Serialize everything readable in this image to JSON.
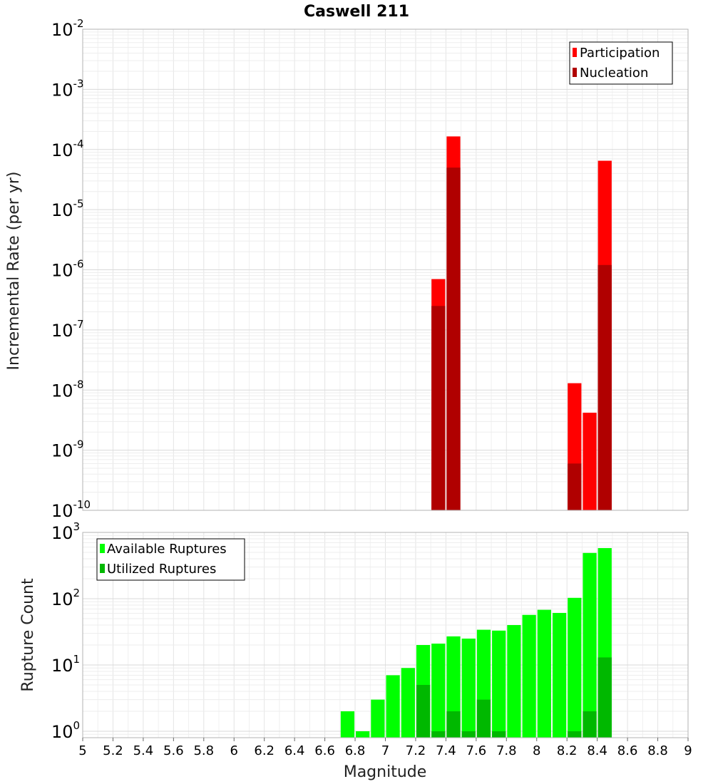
{
  "chart_data": [
    {
      "type": "bar",
      "title": "Caswell 211",
      "xlabel": "",
      "ylabel": "Incremental Rate (per yr)",
      "yscale": "log",
      "xlim": [
        5,
        9
      ],
      "ylim": [
        1e-10,
        0.01
      ],
      "grid": true,
      "legend_position": "top-right",
      "bar_width": 0.1,
      "y_ticks": [
        {
          "base": "10",
          "exp": "-10",
          "value": 1e-10
        },
        {
          "base": "10",
          "exp": "-9",
          "value": 1e-09
        },
        {
          "base": "10",
          "exp": "-8",
          "value": 1e-08
        },
        {
          "base": "10",
          "exp": "-7",
          "value": 1e-07
        },
        {
          "base": "10",
          "exp": "-6",
          "value": 1e-06
        },
        {
          "base": "10",
          "exp": "-5",
          "value": 1e-05
        },
        {
          "base": "10",
          "exp": "-4",
          "value": 0.0001
        },
        {
          "base": "10",
          "exp": "-3",
          "value": 0.001
        },
        {
          "base": "10",
          "exp": "-2",
          "value": 0.01
        }
      ],
      "series": [
        {
          "name": "Participation",
          "color": "#ff0000",
          "x": [
            7.35,
            7.45,
            8.25,
            8.35,
            8.45
          ],
          "values": [
            7e-07,
            0.000165,
            1.3e-08,
            4.2e-09,
            6.5e-05
          ]
        },
        {
          "name": "Nucleation",
          "color": "#b00000",
          "x": [
            7.35,
            7.45,
            8.25,
            8.45
          ],
          "values": [
            2.5e-07,
            5e-05,
            6e-10,
            1.2e-06
          ]
        }
      ]
    },
    {
      "type": "bar",
      "title": "",
      "xlabel": "Magnitude",
      "ylabel": "Rupture Count",
      "yscale": "log",
      "xlim": [
        5,
        9
      ],
      "ylim": [
        0.8,
        1000
      ],
      "grid": true,
      "legend_position": "top-left",
      "bar_width": 0.1,
      "x_ticks": [
        "5",
        "5.2",
        "5.4",
        "5.6",
        "5.8",
        "6",
        "6.2",
        "6.4",
        "6.6",
        "6.8",
        "7",
        "7.2",
        "7.4",
        "7.6",
        "7.8",
        "8",
        "8.2",
        "8.4",
        "8.6",
        "8.8",
        "9"
      ],
      "y_ticks": [
        {
          "base": "10",
          "exp": "0",
          "value": 1
        },
        {
          "base": "10",
          "exp": "1",
          "value": 10
        },
        {
          "base": "10",
          "exp": "2",
          "value": 100
        },
        {
          "base": "10",
          "exp": "3",
          "value": 1000
        }
      ],
      "series": [
        {
          "name": "Available Ruptures",
          "color": "#00ff00",
          "x": [
            6.75,
            6.85,
            6.95,
            7.05,
            7.15,
            7.25,
            7.35,
            7.45,
            7.55,
            7.65,
            7.75,
            7.85,
            7.95,
            8.05,
            8.15,
            8.25,
            8.35,
            8.45
          ],
          "values": [
            2,
            1,
            3,
            7,
            9,
            20,
            21,
            27,
            25,
            34,
            33,
            40,
            57,
            68,
            61,
            103,
            490,
            580
          ]
        },
        {
          "name": "Utilized Ruptures",
          "color": "#00b800",
          "x": [
            7.25,
            7.35,
            7.45,
            7.55,
            7.65,
            7.75,
            8.25,
            8.35,
            8.45
          ],
          "values": [
            5,
            1,
            2,
            1,
            3,
            1,
            1,
            2,
            13
          ]
        }
      ]
    }
  ]
}
